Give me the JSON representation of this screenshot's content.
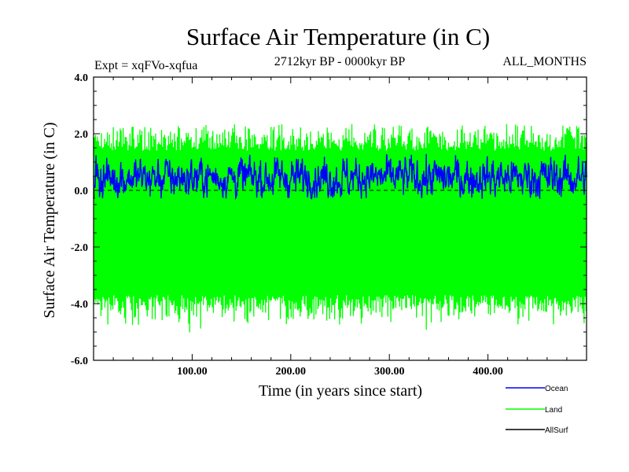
{
  "chart_data": {
    "type": "line",
    "title": "Surface Air Temperature (in C)",
    "subtitle": "2712kyr BP - 0000kyr BP",
    "left_label": "Expt = xqFVo-xqfua",
    "right_label": "ALL_MONTHS",
    "xlabel": "Time (in years since start)",
    "ylabel": "Surface Air Temperature (in C)",
    "xlim": [
      0,
      500
    ],
    "ylim": [
      -6.0,
      4.0
    ],
    "x_ticks": [
      100,
      200,
      300,
      400
    ],
    "x_tick_labels": [
      "100.00",
      "200.00",
      "300.00",
      "400.00"
    ],
    "y_ticks": [
      4.0,
      2.0,
      0.0,
      -2.0,
      -4.0,
      -6.0
    ],
    "y_tick_labels": [
      "4.0",
      "2.0",
      "0.0",
      "-2.0",
      "-4.0",
      "-6.0"
    ],
    "reference_line": 0.0,
    "legend_position": "bottom-right",
    "series": [
      {
        "name": "Land",
        "color": "#00ff00",
        "mean": -1.1,
        "band_low": -3.7,
        "band_high": 1.4,
        "min": -5.1,
        "max": 2.35
      },
      {
        "name": "Ocean",
        "color": "#0000ff",
        "mean": 0.45,
        "band_low": 0.05,
        "band_high": 0.95,
        "min": -0.3,
        "max": 1.3
      },
      {
        "name": "AllSurf",
        "color": "#000000",
        "mean": -0.05,
        "band_low": -0.3,
        "band_high": 0.2
      }
    ],
    "legend": [
      {
        "name": "Ocean",
        "color": "#0000ff"
      },
      {
        "name": "Land",
        "color": "#00ff00"
      },
      {
        "name": "AllSurf",
        "color": "#000000"
      }
    ]
  }
}
